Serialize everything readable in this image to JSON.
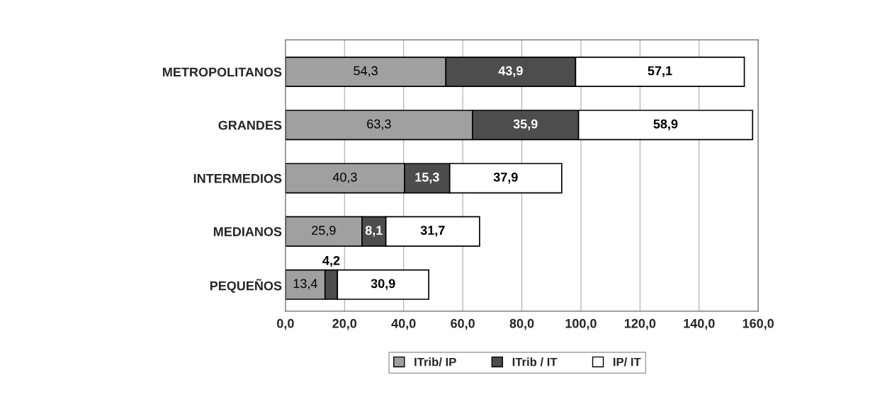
{
  "chart_data": {
    "type": "bar",
    "orientation": "horizontal",
    "stacked": true,
    "categories": [
      "METROPOLITANOS",
      "GRANDES",
      "INTERMEDIOS",
      "MEDIANOS",
      "PEQUEÑOS"
    ],
    "series": [
      {
        "name": "ITrib/ IP",
        "color": "#a0a0a0",
        "values": [
          54.3,
          63.3,
          40.3,
          25.9,
          13.4
        ],
        "value_labels": [
          "54,3",
          "63,3",
          "40,3",
          "25,9",
          "13,4"
        ]
      },
      {
        "name": "ITrib / IT",
        "color": "#4d4d4d",
        "values": [
          43.9,
          35.9,
          15.3,
          8.1,
          4.2
        ],
        "value_labels": [
          "43,9",
          "35,9",
          "15,3",
          "8,1",
          "4,2"
        ]
      },
      {
        "name": "IP/ IT",
        "color": "#ffffff",
        "values": [
          57.1,
          58.9,
          37.9,
          31.7,
          30.9
        ],
        "value_labels": [
          "57,1",
          "58,9",
          "37,9",
          "31,7",
          "30,9"
        ]
      }
    ],
    "xlim": [
      0,
      160
    ],
    "xticks": [
      {
        "value": 0,
        "label": "0,0"
      },
      {
        "value": 20,
        "label": "20,0"
      },
      {
        "value": 40,
        "label": "40,0"
      },
      {
        "value": 60,
        "label": "60,0"
      },
      {
        "value": 80,
        "label": "80,0"
      },
      {
        "value": 100,
        "label": "100,0"
      },
      {
        "value": 120,
        "label": "120,0"
      },
      {
        "value": 140,
        "label": "140,0"
      },
      {
        "value": 160,
        "label": "160,0"
      }
    ],
    "grid": "x",
    "legend": "bottom"
  }
}
